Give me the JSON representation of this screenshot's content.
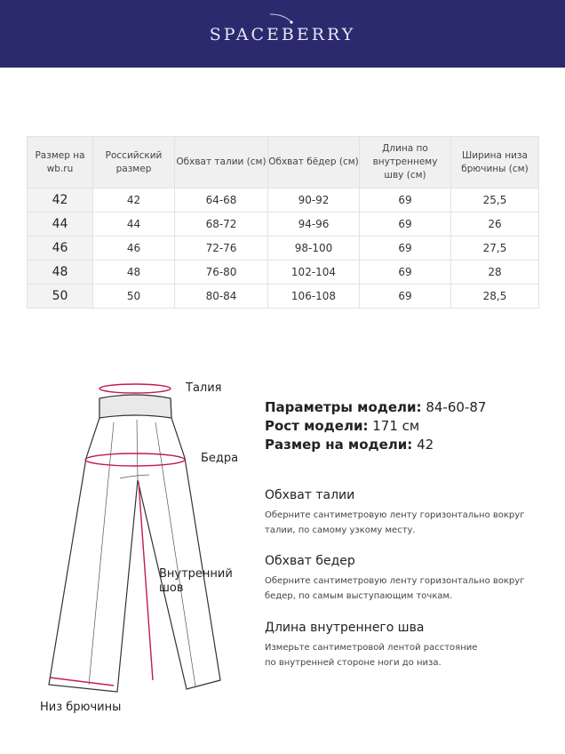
{
  "brand": "SPACEBERRY",
  "table": {
    "headers": [
      "Размер на wb.ru",
      "Российский размер",
      "Обхват талии (см)",
      "Обхват бёдер (см)",
      "Длина по внутреннему шву (см)",
      "Ширина низа брючины (см)"
    ],
    "rows": [
      [
        "42",
        "42",
        "64-68",
        "90-92",
        "69",
        "25,5"
      ],
      [
        "44",
        "44",
        "68-72",
        "94-96",
        "69",
        "26"
      ],
      [
        "46",
        "46",
        "72-76",
        "98-100",
        "69",
        "27,5"
      ],
      [
        "48",
        "48",
        "76-80",
        "102-104",
        "69",
        "28"
      ],
      [
        "50",
        "50",
        "80-84",
        "106-108",
        "69",
        "28,5"
      ]
    ]
  },
  "diagram": {
    "waist": "Талия",
    "hips": "Бедра",
    "inseam_1": "Внутренний",
    "inseam_2": "шов",
    "hem": "Низ брючины",
    "accent_color": "#c2185b"
  },
  "model": {
    "params_label": "Параметры модели:",
    "params_value": "84-60-87",
    "height_label": "Рост модели:",
    "height_value": "171 см",
    "size_label": "Размер на модели:",
    "size_value": "42"
  },
  "sections": [
    {
      "title": "Обхват талии",
      "line1": "Оберните сантиметровую ленту горизонтально вокруг",
      "line2": "талии, по самому узкому месту."
    },
    {
      "title": "Обхват бедер",
      "line1": "Оберните сантиметровую ленту горизонтально вокруг",
      "line2": "бедер, по самым выступающим точкам."
    },
    {
      "title": "Длина внутреннего шва",
      "line1": "Измерьте сантиметровой лентой расстояние",
      "line2": "по внутренней стороне ноги до низа."
    }
  ]
}
